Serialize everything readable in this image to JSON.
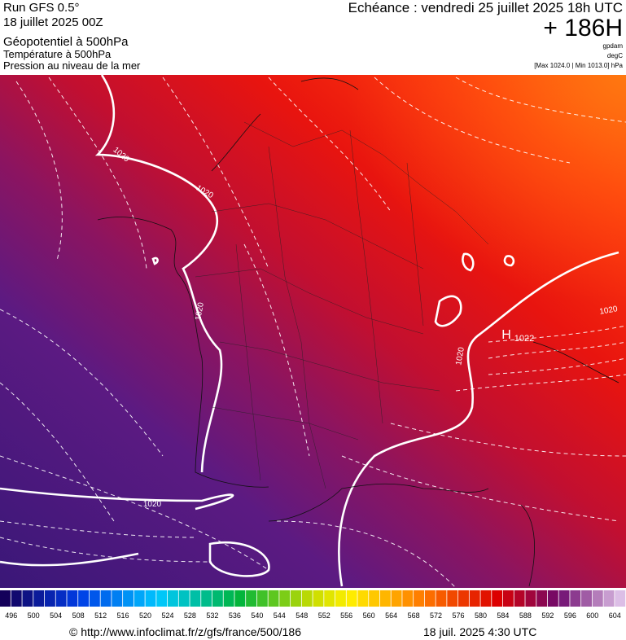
{
  "header": {
    "model": "Run GFS 0.5°",
    "run": "18 juillet 2025 00Z",
    "field1": "Géopotentiel à 500hPa",
    "field2": "Température à 500hPa",
    "field3": "Pression au niveau de la mer",
    "forecast": "Echéance : vendredi 25 juillet 2025 18h UTC",
    "lead": "+ 186H",
    "unit1": "gpdam",
    "unit2": "degC",
    "range": "[Max 1024.0 | Min 1013.0] hPa"
  },
  "map": {
    "isobar_labels": [
      "1020",
      "1020",
      "1020",
      "1020",
      "1020",
      "1020"
    ],
    "high_label": "H",
    "high_value": "1022"
  },
  "legend": {
    "values": [
      496,
      500,
      504,
      508,
      512,
      516,
      520,
      524,
      528,
      532,
      536,
      540,
      544,
      548,
      552,
      556,
      560,
      564,
      568,
      572,
      576,
      580,
      584,
      588,
      592,
      596,
      600,
      604
    ]
  },
  "footer": {
    "url": "© http://www.infoclimat.fr/z/gfs/france/500/186",
    "time": "18 juil. 2025  4:30 UTC"
  }
}
